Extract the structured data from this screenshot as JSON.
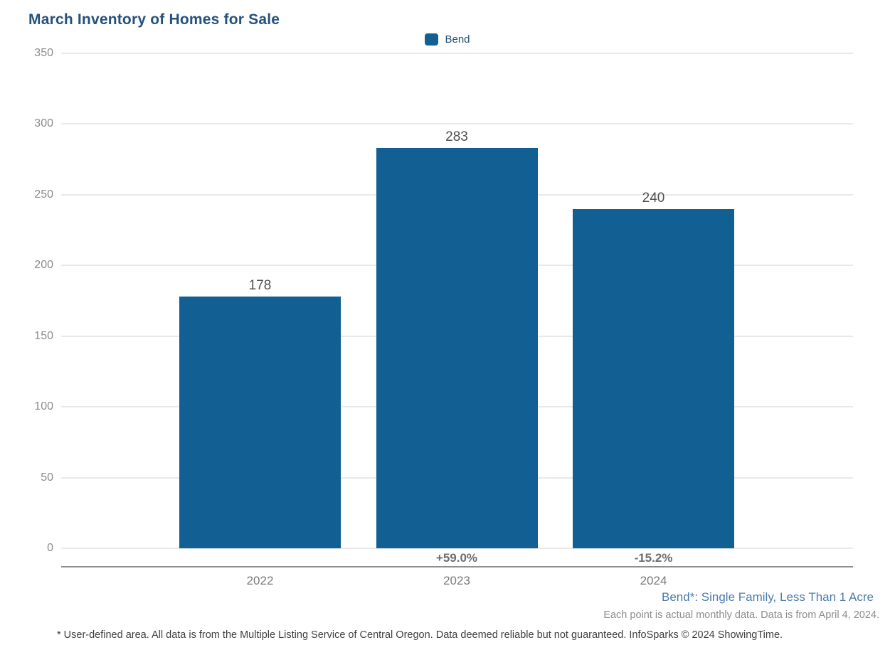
{
  "chart_data": {
    "type": "bar",
    "title": "March Inventory of Homes for Sale",
    "categories": [
      "2022",
      "2023",
      "2024"
    ],
    "series": [
      {
        "name": "Bend",
        "values": [
          178,
          283,
          240
        ]
      }
    ],
    "value_labels": [
      "178",
      "283",
      "240"
    ],
    "pct_change_labels": [
      "",
      "+59.0%",
      "-15.2%"
    ],
    "yticks": [
      0,
      50,
      100,
      150,
      200,
      250,
      300,
      350
    ],
    "ylim": [
      0,
      350
    ],
    "xlabel": "",
    "ylabel": "",
    "grid": true,
    "legend_position": "top-center"
  },
  "legend": {
    "items": [
      {
        "label": "Bend",
        "color": "#115f93"
      }
    ]
  },
  "footnotes": {
    "series_definition": "Bend*: Single Family, Less Than 1 Acre",
    "data_note": "Each point is actual monthly data. Data is from April 4, 2024.",
    "disclaimer": "* User-defined area. All data is from the Multiple Listing Service of Central Oregon. Data deemed reliable but not guaranteed. InfoSparks © 2024 ShowingTime."
  },
  "colors": {
    "bar": "#115f93",
    "title": "#25517c",
    "footnote_link": "#4a7cae"
  }
}
